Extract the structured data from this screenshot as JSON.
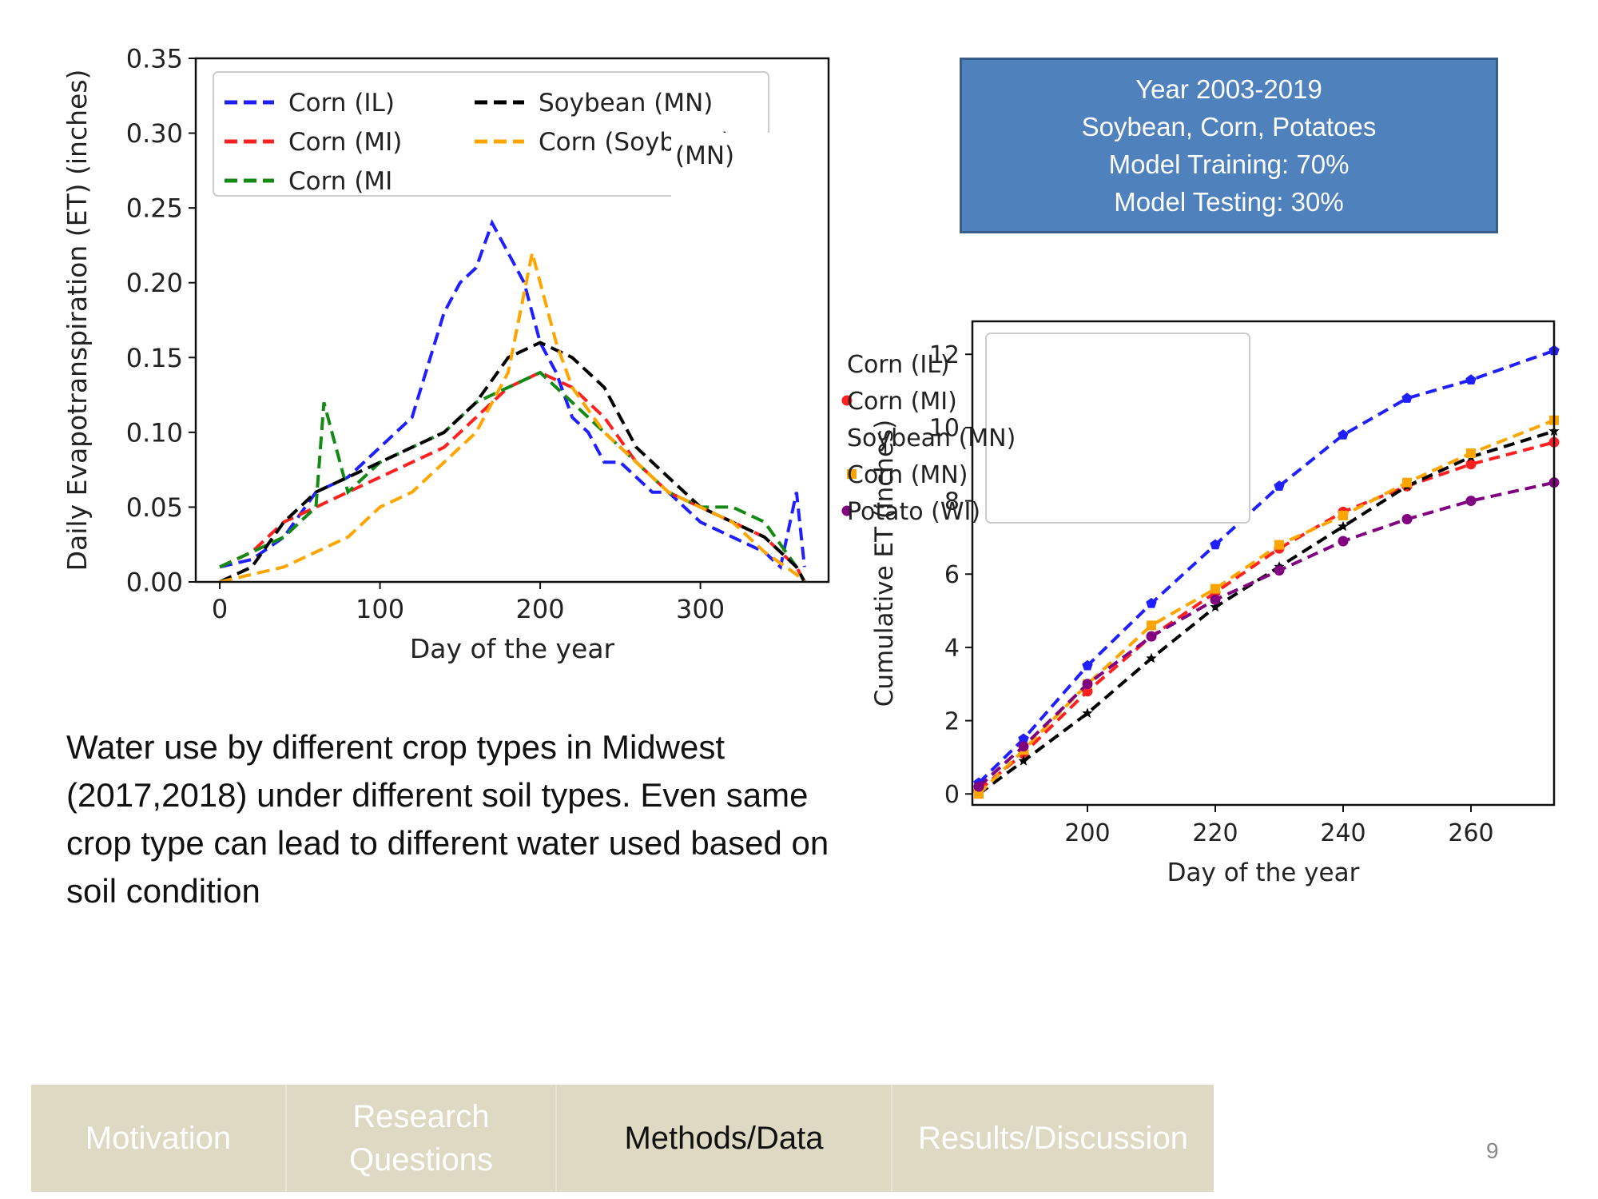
{
  "info_box": {
    "lines": [
      "Year 2003-2019",
      "Soybean, Corn, Potatoes",
      "Model Training: 70%",
      "Model Testing: 30%"
    ]
  },
  "caption": "Water use by different crop types in Midwest (2017,2018)  under different soil types. Even same crop type can lead to different water used based on soil condition",
  "nav": {
    "items": [
      {
        "label": "Motivation",
        "active": false
      },
      {
        "label": "Research Questions",
        "active": false
      },
      {
        "label": "Methods/Data",
        "active": true
      },
      {
        "label": "Results/Discussion",
        "active": false
      }
    ]
  },
  "page_number": "9",
  "chart_data": [
    {
      "type": "line",
      "title": "",
      "xlabel": "Day of the year",
      "ylabel": "Daily Evapotranspiration (ET) (inches)",
      "xlim": [
        -15,
        380
      ],
      "ylim": [
        0,
        0.35
      ],
      "xticks": [
        0,
        100,
        200,
        300
      ],
      "yticks": [
        "0.00",
        "0.05",
        "0.10",
        "0.15",
        "0.20",
        "0.25",
        "0.30",
        "0.35"
      ],
      "legend_position": "top-left",
      "legend_overlay_text": "(MN)",
      "line_style": "dashed",
      "series": [
        {
          "name": "Corn (IL)",
          "color": "#1f1fff",
          "x": [
            0,
            20,
            40,
            60,
            80,
            100,
            120,
            140,
            150,
            160,
            170,
            180,
            190,
            200,
            210,
            220,
            230,
            240,
            250,
            260,
            270,
            280,
            300,
            320,
            340,
            350,
            360,
            365
          ],
          "y": [
            0.01,
            0.015,
            0.03,
            0.06,
            0.07,
            0.09,
            0.11,
            0.18,
            0.2,
            0.21,
            0.24,
            0.22,
            0.2,
            0.16,
            0.14,
            0.11,
            0.1,
            0.08,
            0.08,
            0.07,
            0.06,
            0.06,
            0.04,
            0.03,
            0.02,
            0.01,
            0.06,
            0.01
          ]
        },
        {
          "name": "Corn (MI)",
          "color": "#ff2020",
          "x": [
            0,
            20,
            40,
            60,
            80,
            100,
            120,
            140,
            160,
            180,
            200,
            220,
            240,
            260,
            280,
            300,
            320,
            340,
            360,
            365
          ],
          "y": [
            0.01,
            0.02,
            0.04,
            0.05,
            0.06,
            0.07,
            0.08,
            0.09,
            0.11,
            0.13,
            0.14,
            0.13,
            0.11,
            0.08,
            0.06,
            0.05,
            0.04,
            0.03,
            0.01,
            0.0
          ]
        },
        {
          "name": "Corn (MI",
          "color": "#138a13",
          "x": [
            0,
            20,
            40,
            60,
            65,
            80,
            100,
            120,
            140,
            160,
            180,
            200,
            220,
            240,
            260,
            280,
            300,
            320,
            340,
            360,
            365
          ],
          "y": [
            0.01,
            0.02,
            0.03,
            0.05,
            0.12,
            0.06,
            0.08,
            0.09,
            0.1,
            0.12,
            0.13,
            0.14,
            0.12,
            0.1,
            0.08,
            0.06,
            0.05,
            0.05,
            0.04,
            0.01,
            0.0
          ]
        },
        {
          "name": "Soybean (MN)",
          "color": "#000000",
          "x": [
            0,
            20,
            40,
            60,
            80,
            100,
            120,
            140,
            160,
            180,
            200,
            220,
            240,
            260,
            280,
            300,
            320,
            340,
            360,
            365
          ],
          "y": [
            0.0,
            0.01,
            0.04,
            0.06,
            0.07,
            0.08,
            0.09,
            0.1,
            0.12,
            0.15,
            0.16,
            0.15,
            0.13,
            0.09,
            0.07,
            0.05,
            0.04,
            0.03,
            0.01,
            0.0
          ]
        },
        {
          "name": "Corn (Soybean)",
          "color": "#ffa500",
          "x": [
            0,
            20,
            40,
            60,
            80,
            100,
            120,
            140,
            160,
            180,
            195,
            210,
            220,
            240,
            260,
            280,
            300,
            320,
            340,
            360,
            365
          ],
          "y": [
            0.0,
            0.005,
            0.01,
            0.02,
            0.03,
            0.05,
            0.06,
            0.08,
            0.1,
            0.14,
            0.22,
            0.16,
            0.13,
            0.1,
            0.08,
            0.06,
            0.05,
            0.04,
            0.02,
            0.005,
            0.0
          ]
        }
      ]
    },
    {
      "type": "line",
      "title": "",
      "xlabel": "Day of the year",
      "ylabel": "Cumulative ET (inches)",
      "xlim": [
        182,
        273
      ],
      "ylim": [
        -0.3,
        12.9
      ],
      "xticks": [
        200,
        220,
        240,
        260
      ],
      "yticks": [
        0,
        2,
        4,
        6,
        8,
        10,
        12
      ],
      "legend_position": "top-left",
      "series": [
        {
          "name": "Corn (IL)",
          "color": "#1f1fff",
          "marker": "pentagon",
          "x": [
            183,
            190,
            200,
            210,
            220,
            230,
            240,
            250,
            260,
            273
          ],
          "y": [
            0.3,
            1.5,
            3.5,
            5.2,
            6.8,
            8.4,
            9.8,
            10.8,
            11.3,
            12.1
          ]
        },
        {
          "name": "Corn (MI)",
          "color": "#ff2020",
          "marker": "circle",
          "x": [
            183,
            190,
            200,
            210,
            220,
            230,
            240,
            250,
            260,
            273
          ],
          "y": [
            0.1,
            1.1,
            2.8,
            4.3,
            5.5,
            6.7,
            7.7,
            8.4,
            9.0,
            9.6
          ]
        },
        {
          "name": "Soybean (MN)",
          "color": "#000000",
          "marker": "star",
          "x": [
            183,
            190,
            200,
            210,
            220,
            230,
            240,
            250,
            260,
            273
          ],
          "y": [
            0.0,
            0.9,
            2.2,
            3.7,
            5.1,
            6.2,
            7.3,
            8.4,
            9.2,
            9.9
          ]
        },
        {
          "name": "Corn (MN)",
          "color": "#ffa500",
          "marker": "square",
          "x": [
            183,
            190,
            200,
            210,
            220,
            230,
            240,
            250,
            260,
            273
          ],
          "y": [
            0.0,
            1.2,
            3.0,
            4.6,
            5.6,
            6.8,
            7.6,
            8.5,
            9.3,
            10.2
          ]
        },
        {
          "name": "Potato (WI)",
          "color": "#800080",
          "marker": "circle",
          "x": [
            183,
            190,
            200,
            210,
            220,
            230,
            240,
            250,
            260,
            273
          ],
          "y": [
            0.2,
            1.3,
            3.0,
            4.3,
            5.3,
            6.1,
            6.9,
            7.5,
            8.0,
            8.5
          ]
        }
      ]
    }
  ]
}
